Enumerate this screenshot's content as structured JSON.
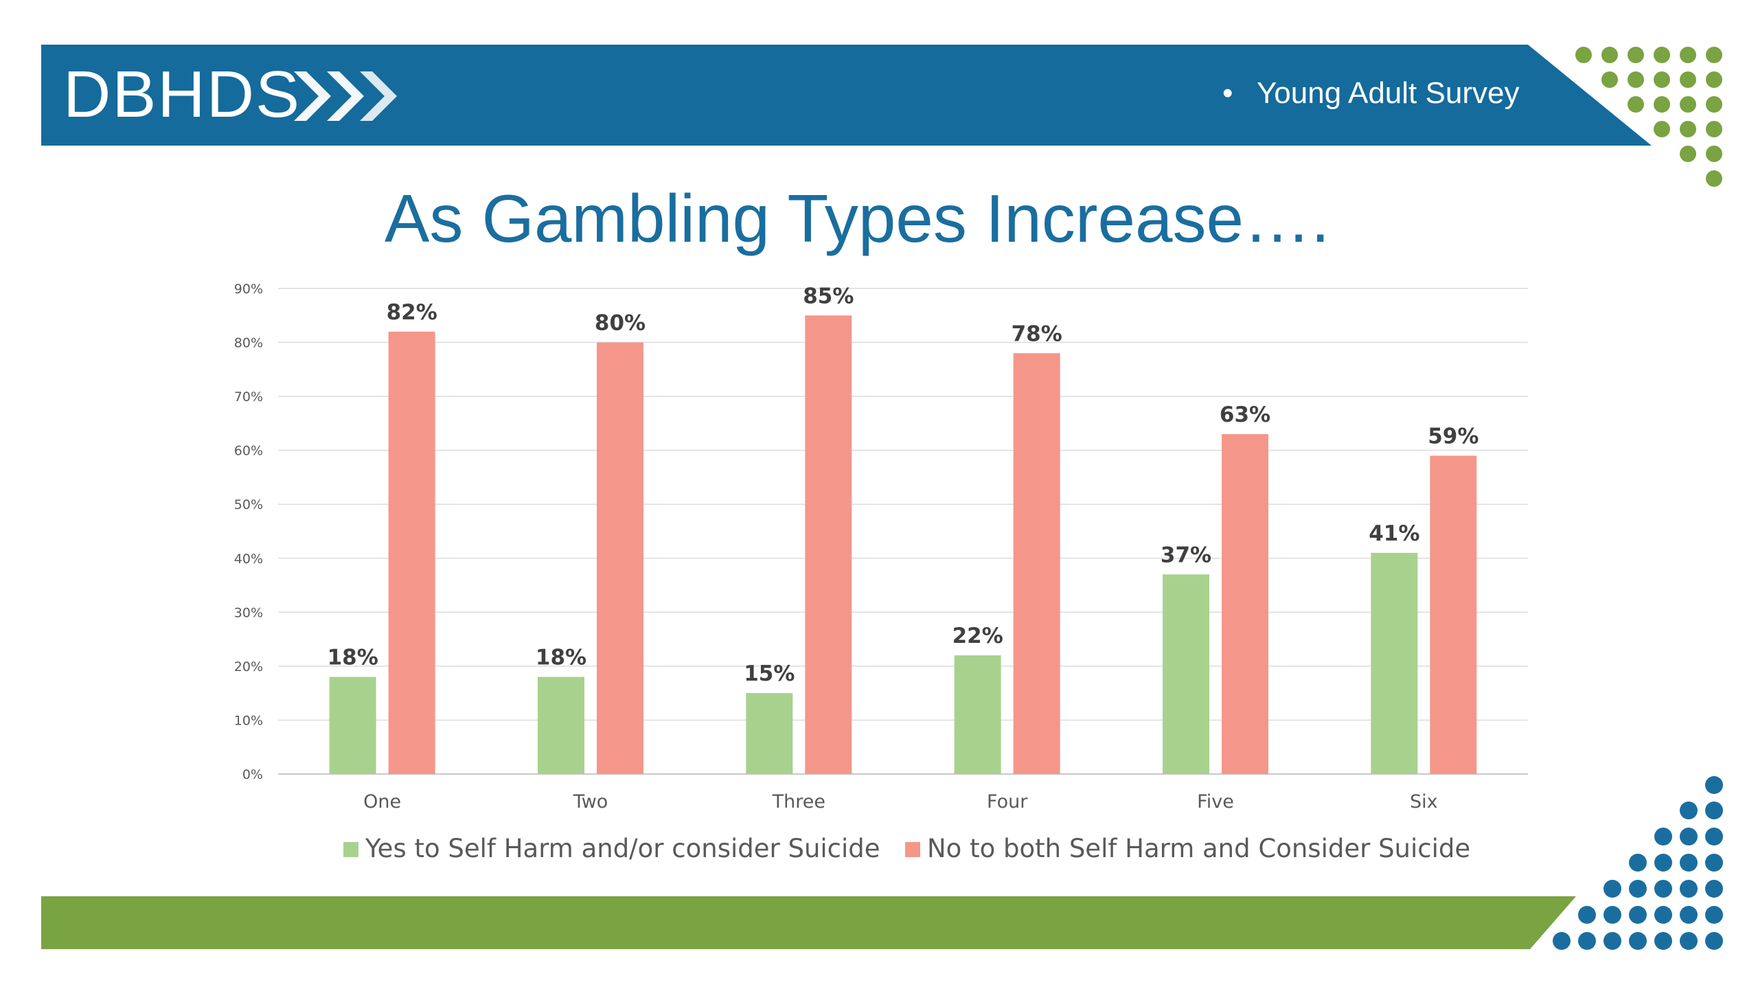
{
  "header": {
    "logo": "DBHDS",
    "bullet": "•",
    "subtitle": "Young Adult Survey"
  },
  "slide": {
    "title": "As Gambling Types Increase…."
  },
  "colors": {
    "banner_blue": "#146B9C",
    "banner_green": "#7AA342",
    "dot_green": "#7AA342",
    "dot_blue": "#1A6E9F",
    "title_blue": "#1A6E9F",
    "series_yes": "#A9D18E",
    "series_no": "#F4978A"
  },
  "chart_data": {
    "type": "bar",
    "categories": [
      "One",
      "Two",
      "Three",
      "Four",
      "Five",
      "Six"
    ],
    "series": [
      {
        "name": "Yes to Self Harm and/or consider Suicide",
        "values": [
          18,
          18,
          15,
          22,
          37,
          41
        ],
        "labels": [
          "18%",
          "18%",
          "15%",
          "22%",
          "37%",
          "41%"
        ]
      },
      {
        "name": "No to both Self Harm and Consider Suicide",
        "values": [
          82,
          80,
          85,
          78,
          63,
          59
        ],
        "labels": [
          "82%",
          "80%",
          "85%",
          "78%",
          "63%",
          "59%"
        ]
      }
    ],
    "ylim": [
      0,
      90
    ],
    "yticks": [
      "0%",
      "10%",
      "20%",
      "30%",
      "40%",
      "50%",
      "60%",
      "70%",
      "80%",
      "90%"
    ],
    "grid": true,
    "legend": "bottom"
  }
}
